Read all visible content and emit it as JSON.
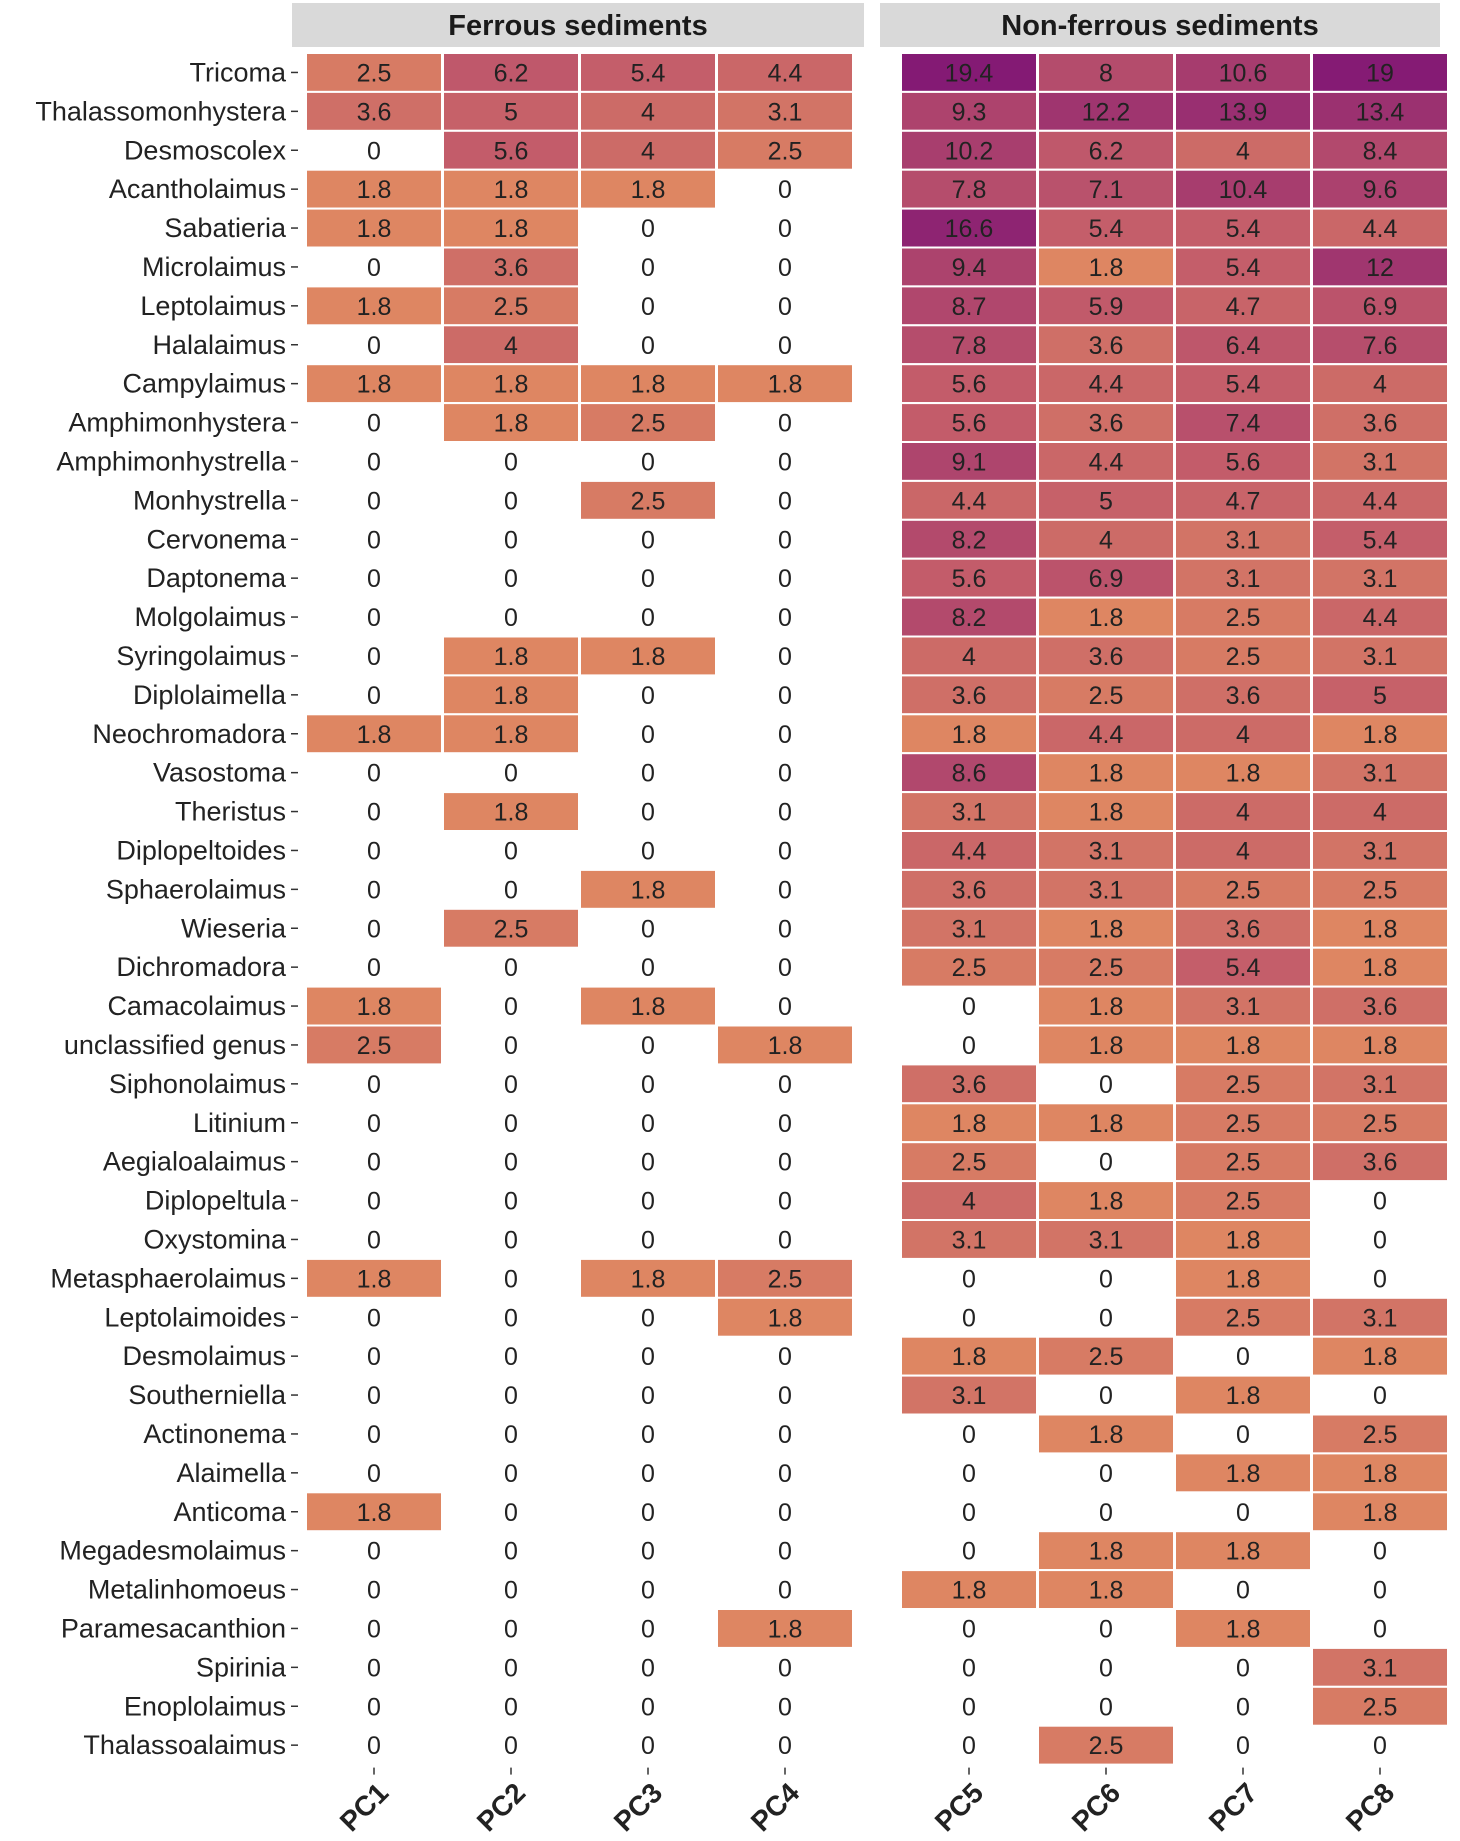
{
  "chart_data": {
    "type": "heatmap",
    "title": "",
    "xlabel": "",
    "ylabel": "",
    "facets": [
      "Ferrous sediments",
      "Non-ferrous sediments"
    ],
    "columns": [
      "PC1",
      "PC2",
      "PC3",
      "PC4",
      "PC5",
      "PC6",
      "PC7",
      "PC8"
    ],
    "column_facet": [
      0,
      0,
      0,
      0,
      1,
      1,
      1,
      1
    ],
    "colorscale": {
      "low": "#dc8363",
      "mid": "#b9526a",
      "high": "#871d75",
      "range": [
        0,
        19.4
      ],
      "zero_shown_as": "blank"
    },
    "rows": [
      {
        "genus": "Tricoma",
        "values": [
          2.5,
          6.2,
          5.4,
          4.4,
          19.4,
          8,
          10.6,
          19
        ]
      },
      {
        "genus": "Thalassomonhystera",
        "values": [
          3.6,
          5,
          4,
          3.1,
          9.3,
          12.2,
          13.9,
          13.4
        ]
      },
      {
        "genus": "Desmoscolex",
        "values": [
          0,
          5.6,
          4,
          2.5,
          10.2,
          6.2,
          4,
          8.4
        ]
      },
      {
        "genus": "Acantholaimus",
        "values": [
          1.8,
          1.8,
          1.8,
          0,
          7.8,
          7.1,
          10.4,
          9.6
        ]
      },
      {
        "genus": "Sabatieria",
        "values": [
          1.8,
          1.8,
          0,
          0,
          16.6,
          5.4,
          5.4,
          4.4
        ]
      },
      {
        "genus": "Microlaimus",
        "values": [
          0,
          3.6,
          0,
          0,
          9.4,
          1.8,
          5.4,
          12
        ]
      },
      {
        "genus": "Leptolaimus",
        "values": [
          1.8,
          2.5,
          0,
          0,
          8.7,
          5.9,
          4.7,
          6.9
        ]
      },
      {
        "genus": "Halalaimus",
        "values": [
          0,
          4,
          0,
          0,
          7.8,
          3.6,
          6.4,
          7.6
        ]
      },
      {
        "genus": "Campylaimus",
        "values": [
          1.8,
          1.8,
          1.8,
          1.8,
          5.6,
          4.4,
          5.4,
          4
        ]
      },
      {
        "genus": "Amphimonhystera",
        "values": [
          0,
          1.8,
          2.5,
          0,
          5.6,
          3.6,
          7.4,
          3.6
        ]
      },
      {
        "genus": "Amphimonhystrella",
        "values": [
          0,
          0,
          0,
          0,
          9.1,
          4.4,
          5.6,
          3.1
        ]
      },
      {
        "genus": "Monhystrella",
        "values": [
          0,
          0,
          2.5,
          0,
          4.4,
          5,
          4.7,
          4.4
        ]
      },
      {
        "genus": "Cervonema",
        "values": [
          0,
          0,
          0,
          0,
          8.2,
          4,
          3.1,
          5.4
        ]
      },
      {
        "genus": "Daptonema",
        "values": [
          0,
          0,
          0,
          0,
          5.6,
          6.9,
          3.1,
          3.1
        ]
      },
      {
        "genus": "Molgolaimus",
        "values": [
          0,
          0,
          0,
          0,
          8.2,
          1.8,
          2.5,
          4.4
        ]
      },
      {
        "genus": "Syringolaimus",
        "values": [
          0,
          1.8,
          1.8,
          0,
          4,
          3.6,
          2.5,
          3.1
        ]
      },
      {
        "genus": "Diplolaimella",
        "values": [
          0,
          1.8,
          0,
          0,
          3.6,
          2.5,
          3.6,
          5
        ]
      },
      {
        "genus": "Neochromadora",
        "values": [
          1.8,
          1.8,
          0,
          0,
          1.8,
          4.4,
          4,
          1.8
        ]
      },
      {
        "genus": "Vasostoma",
        "values": [
          0,
          0,
          0,
          0,
          8.6,
          1.8,
          1.8,
          3.1
        ]
      },
      {
        "genus": "Theristus",
        "values": [
          0,
          1.8,
          0,
          0,
          3.1,
          1.8,
          4,
          4
        ]
      },
      {
        "genus": "Diplopeltoides",
        "values": [
          0,
          0,
          0,
          0,
          4.4,
          3.1,
          4,
          3.1
        ]
      },
      {
        "genus": "Sphaerolaimus",
        "values": [
          0,
          0,
          1.8,
          0,
          3.6,
          3.1,
          2.5,
          2.5
        ]
      },
      {
        "genus": "Wieseria",
        "values": [
          0,
          2.5,
          0,
          0,
          3.1,
          1.8,
          3.6,
          1.8
        ]
      },
      {
        "genus": "Dichromadora",
        "values": [
          0,
          0,
          0,
          0,
          2.5,
          2.5,
          5.4,
          1.8
        ]
      },
      {
        "genus": "Camacolaimus",
        "values": [
          1.8,
          0,
          1.8,
          0,
          0,
          1.8,
          3.1,
          3.6
        ]
      },
      {
        "genus": "unclassified genus",
        "values": [
          2.5,
          0,
          0,
          1.8,
          0,
          1.8,
          1.8,
          1.8
        ]
      },
      {
        "genus": "Siphonolaimus",
        "values": [
          0,
          0,
          0,
          0,
          3.6,
          0,
          2.5,
          3.1
        ]
      },
      {
        "genus": "Litinium",
        "values": [
          0,
          0,
          0,
          0,
          1.8,
          1.8,
          2.5,
          2.5
        ]
      },
      {
        "genus": "Aegialoalaimus",
        "values": [
          0,
          0,
          0,
          0,
          2.5,
          0,
          2.5,
          3.6
        ]
      },
      {
        "genus": "Diplopeltula",
        "values": [
          0,
          0,
          0,
          0,
          4,
          1.8,
          2.5,
          0
        ]
      },
      {
        "genus": "Oxystomina",
        "values": [
          0,
          0,
          0,
          0,
          3.1,
          3.1,
          1.8,
          0
        ]
      },
      {
        "genus": "Metasphaerolaimus",
        "values": [
          1.8,
          0,
          1.8,
          2.5,
          0,
          0,
          1.8,
          0
        ]
      },
      {
        "genus": "Leptolaimoides",
        "values": [
          0,
          0,
          0,
          1.8,
          0,
          0,
          2.5,
          3.1
        ]
      },
      {
        "genus": "Desmolaimus",
        "values": [
          0,
          0,
          0,
          0,
          1.8,
          2.5,
          0,
          1.8
        ]
      },
      {
        "genus": "Southerniella",
        "values": [
          0,
          0,
          0,
          0,
          3.1,
          0,
          1.8,
          0
        ]
      },
      {
        "genus": "Actinonema",
        "values": [
          0,
          0,
          0,
          0,
          0,
          1.8,
          0,
          2.5
        ]
      },
      {
        "genus": "Alaimella",
        "values": [
          0,
          0,
          0,
          0,
          0,
          0,
          1.8,
          1.8
        ]
      },
      {
        "genus": "Anticoma",
        "values": [
          1.8,
          0,
          0,
          0,
          0,
          0,
          0,
          1.8
        ]
      },
      {
        "genus": "Megadesmolaimus",
        "values": [
          0,
          0,
          0,
          0,
          0,
          1.8,
          1.8,
          0
        ]
      },
      {
        "genus": "Metalinhomoeus",
        "values": [
          0,
          0,
          0,
          0,
          1.8,
          1.8,
          0,
          0
        ]
      },
      {
        "genus": "Paramesacanthion",
        "values": [
          0,
          0,
          0,
          1.8,
          0,
          0,
          1.8,
          0
        ]
      },
      {
        "genus": "Spirinia",
        "values": [
          0,
          0,
          0,
          0,
          0,
          0,
          0,
          3.1
        ]
      },
      {
        "genus": "Enoplolaimus",
        "values": [
          0,
          0,
          0,
          0,
          0,
          0,
          0,
          2.5
        ]
      },
      {
        "genus": "Thalassoalaimus",
        "values": [
          0,
          0,
          0,
          0,
          0,
          2.5,
          0,
          0
        ]
      }
    ]
  }
}
